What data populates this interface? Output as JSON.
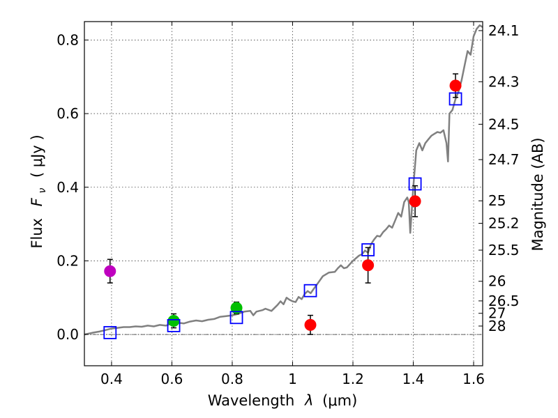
{
  "chart_data": {
    "type": "scatter",
    "xlabel_prefix": "Wavelength",
    "xlabel_symbol": "λ",
    "xlabel_units": "(μm)",
    "ylabel_prefix": "Flux",
    "ylabel_symbol": "F",
    "ylabel_subscript": "ν",
    "ylabel_units": "( μJy )",
    "y2label": "Magnitude (AB)",
    "xlim": [
      0.31,
      1.63
    ],
    "ylim": [
      -0.085,
      0.85
    ],
    "x_ticks": [
      0.4,
      0.6,
      0.8,
      1.0,
      1.2,
      1.4,
      1.6
    ],
    "x_tick_labels": [
      "0.4",
      "0.6",
      "0.8",
      "1",
      "1.2",
      "1.4",
      "1.6"
    ],
    "y_ticks": [
      0.0,
      0.2,
      0.4,
      0.6,
      0.8
    ],
    "y_tick_labels": [
      "0.0",
      "0.2",
      "0.4",
      "0.6",
      "0.8"
    ],
    "grid": true,
    "magnitude_ticks": [
      {
        "label": "24.1",
        "flux": 0.8255
      },
      {
        "label": "24.3",
        "flux": 0.6866
      },
      {
        "label": "24.5",
        "flux": 0.5711
      },
      {
        "label": "24.7",
        "flux": 0.475
      },
      {
        "label": "25",
        "flux": 0.3631
      },
      {
        "label": "25.2",
        "flux": 0.302
      },
      {
        "label": "25.5",
        "flux": 0.2291
      },
      {
        "label": "26",
        "flux": 0.1445
      },
      {
        "label": "26.5",
        "flux": 0.0912
      },
      {
        "label": "27",
        "flux": 0.0575
      },
      {
        "label": "28",
        "flux": 0.0229
      }
    ],
    "template_spectrum": {
      "name": "model spectrum",
      "color": "#808080",
      "x": [
        0.31,
        0.34,
        0.36,
        0.38,
        0.4,
        0.42,
        0.44,
        0.46,
        0.48,
        0.5,
        0.52,
        0.54,
        0.56,
        0.58,
        0.6,
        0.62,
        0.64,
        0.66,
        0.68,
        0.7,
        0.72,
        0.74,
        0.76,
        0.78,
        0.8,
        0.82,
        0.84,
        0.86,
        0.87,
        0.88,
        0.9,
        0.91,
        0.93,
        0.95,
        0.96,
        0.97,
        0.98,
        0.99,
        1.0,
        1.01,
        1.02,
        1.03,
        1.04,
        1.05,
        1.06,
        1.07,
        1.08,
        1.1,
        1.12,
        1.14,
        1.15,
        1.16,
        1.17,
        1.18,
        1.2,
        1.22,
        1.23,
        1.24,
        1.25,
        1.26,
        1.27,
        1.28,
        1.29,
        1.3,
        1.31,
        1.32,
        1.33,
        1.34,
        1.35,
        1.36,
        1.37,
        1.38,
        1.385,
        1.39,
        1.4,
        1.41,
        1.42,
        1.43,
        1.44,
        1.45,
        1.46,
        1.47,
        1.48,
        1.49,
        1.5,
        1.51,
        1.515,
        1.52,
        1.53,
        1.54,
        1.55,
        1.56,
        1.57,
        1.58,
        1.59,
        1.6,
        1.61,
        1.62,
        1.63
      ],
      "y": [
        0.0,
        0.005,
        0.008,
        0.012,
        0.016,
        0.018,
        0.02,
        0.02,
        0.022,
        0.021,
        0.024,
        0.022,
        0.026,
        0.024,
        0.03,
        0.032,
        0.03,
        0.035,
        0.038,
        0.036,
        0.04,
        0.042,
        0.048,
        0.05,
        0.052,
        0.056,
        0.062,
        0.064,
        0.052,
        0.062,
        0.066,
        0.07,
        0.064,
        0.08,
        0.09,
        0.082,
        0.1,
        0.094,
        0.09,
        0.088,
        0.102,
        0.096,
        0.11,
        0.118,
        0.112,
        0.124,
        0.135,
        0.158,
        0.168,
        0.17,
        0.18,
        0.188,
        0.18,
        0.182,
        0.2,
        0.214,
        0.218,
        0.228,
        0.222,
        0.245,
        0.258,
        0.268,
        0.266,
        0.278,
        0.286,
        0.296,
        0.29,
        0.31,
        0.33,
        0.32,
        0.36,
        0.372,
        0.36,
        0.276,
        0.4,
        0.5,
        0.52,
        0.5,
        0.52,
        0.53,
        0.54,
        0.545,
        0.55,
        0.548,
        0.555,
        0.52,
        0.47,
        0.6,
        0.61,
        0.64,
        0.66,
        0.69,
        0.73,
        0.77,
        0.76,
        0.81,
        0.83,
        0.84,
        0.835
      ]
    },
    "model_photometry": {
      "name": "model photometry",
      "marker": "open-square",
      "color": "#0000ff",
      "x": [
        0.395,
        0.606,
        0.814,
        1.059,
        1.25,
        1.406,
        1.54
      ],
      "y": [
        0.005,
        0.024,
        0.046,
        0.119,
        0.23,
        0.409,
        0.64
      ]
    },
    "observed_photometry": [
      {
        "x": 0.395,
        "y": 0.172,
        "err": 0.032,
        "color": "#bf00bf"
      },
      {
        "x": 0.606,
        "y": 0.037,
        "err": 0.019,
        "color": "#00bf00"
      },
      {
        "x": 0.814,
        "y": 0.072,
        "err": 0.016,
        "color": "#00bf00"
      },
      {
        "x": 1.059,
        "y": 0.026,
        "err": 0.026,
        "color": "#ff0000"
      },
      {
        "x": 1.25,
        "y": 0.188,
        "err": 0.048,
        "color": "#ff0000"
      },
      {
        "x": 1.406,
        "y": 0.362,
        "err": 0.042,
        "color": "#ff0000"
      },
      {
        "x": 1.54,
        "y": 0.676,
        "err": 0.032,
        "color": "#ff0000"
      }
    ]
  }
}
